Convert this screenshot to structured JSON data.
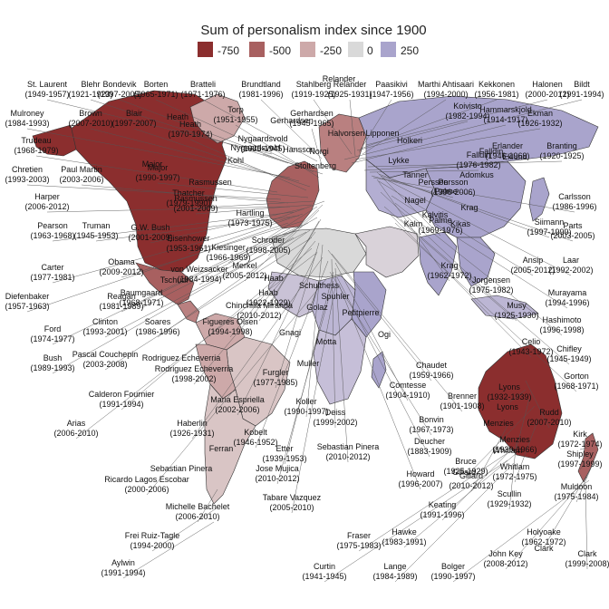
{
  "title": "Sum of personalism index since 1900",
  "legend": [
    {
      "label": "-750",
      "color": "#8b2e2e"
    },
    {
      "label": "-500",
      "color": "#a86060"
    },
    {
      "label": "-250",
      "color": "#cda9a9"
    },
    {
      "label": "0",
      "color": "#d9d9d9"
    },
    {
      "label": "250",
      "color": "#a9a4cc"
    }
  ],
  "regions": [
    {
      "name": "north-america",
      "color": "#8b2e2e"
    },
    {
      "name": "alaska",
      "color": "#8b2e2e"
    },
    {
      "name": "greenland",
      "color": "#cda9a9"
    },
    {
      "name": "mexico",
      "color": "#a86060"
    },
    {
      "name": "central-america",
      "color": "#b98080"
    },
    {
      "name": "colombia-venezuela",
      "color": "#cda9a9"
    },
    {
      "name": "brazil",
      "color": "#d9c5c5"
    },
    {
      "name": "peru-bolivia",
      "color": "#cda9a9"
    },
    {
      "name": "argentina-chile",
      "color": "#d9c5c5"
    },
    {
      "name": "western-europe",
      "color": "#a86060"
    },
    {
      "name": "scandinavia",
      "color": "#b98080"
    },
    {
      "name": "north-africa",
      "color": "#d9d9d9"
    },
    {
      "name": "west-africa",
      "color": "#c9c2d6"
    },
    {
      "name": "central-africa",
      "color": "#bcb6d4"
    },
    {
      "name": "east-africa",
      "color": "#a9a4cc"
    },
    {
      "name": "southern-africa",
      "color": "#c6bfd8"
    },
    {
      "name": "madagascar",
      "color": "#a9a4cc"
    },
    {
      "name": "middle-east",
      "color": "#d9d2d9"
    },
    {
      "name": "russia",
      "color": "#a9a4cc"
    },
    {
      "name": "central-asia",
      "color": "#b3aed2"
    },
    {
      "name": "india",
      "color": "#a9a4cc"
    },
    {
      "name": "china",
      "color": "#a9a4cc"
    },
    {
      "name": "southeast-asia",
      "color": "#a9a4cc"
    },
    {
      "name": "japan",
      "color": "#a9a4cc"
    },
    {
      "name": "indonesia",
      "color": "#bcb6d4"
    },
    {
      "name": "australia",
      "color": "#8b2e2e"
    },
    {
      "name": "new-zealand",
      "color": "#a86060"
    }
  ],
  "leaders": [
    {
      "name": "St. Laurent",
      "years": "(1949-1957)"
    },
    {
      "name": "Blehr",
      "years": "(1921-1923)"
    },
    {
      "name": "Bondevik",
      "years": "(1997-2005)"
    },
    {
      "name": "Borten",
      "years": "(1965-1971)"
    },
    {
      "name": "Bratteli",
      "years": "(1971-1976)"
    },
    {
      "name": "Brundtland",
      "years": "(1981-1996)"
    },
    {
      "name": "Stahlberg",
      "years": "(1919-1925)"
    },
    {
      "name": "Relander",
      "years": "(1925-1931)"
    },
    {
      "name": "Paasikivi",
      "years": "(1947-1956)"
    },
    {
      "name": "Marthi Ahtisaari",
      "years": "(1994-2000)"
    },
    {
      "name": "Kekkonen",
      "years": "(1956-1981)"
    },
    {
      "name": "Halonen",
      "years": "(2000-2012)"
    },
    {
      "name": "Bildt",
      "years": "(1991-1994)"
    },
    {
      "name": "Mulroney",
      "years": "(1984-1993)"
    },
    {
      "name": "Brown",
      "years": "(2007-2010)"
    },
    {
      "name": "Blair",
      "years": "(1997-2007)"
    },
    {
      "name": "Torp",
      "years": "(1951-1955)"
    },
    {
      "name": "Gerhardsen",
      "years": "(1945-1965)"
    },
    {
      "name": "Nygaardsvold",
      "years": "(1935-1945)"
    },
    {
      "name": "Heath",
      "years": "(1970-1974)"
    },
    {
      "name": "Koivisto",
      "years": "(1982-1994)"
    },
    {
      "name": "Hammarskjold",
      "years": "(1914-1917)"
    },
    {
      "name": "Ekman",
      "years": "(1926-1932)"
    },
    {
      "name": "Trudeau",
      "years": "(1968-1979)"
    },
    {
      "name": "Chretien",
      "years": "(1993-2003)"
    },
    {
      "name": "Paul Martin",
      "years": "(2003-2006)"
    },
    {
      "name": "Harper",
      "years": "(2006-2012)"
    },
    {
      "name": "Pearson",
      "years": "(1963-1968)"
    },
    {
      "name": "Truman",
      "years": "(1945-1953)"
    },
    {
      "name": "G.W. Bush",
      "years": "(2001-2009)"
    },
    {
      "name": "Rasmussen",
      "years": "(2001-2009)"
    },
    {
      "name": "Major",
      "years": "(1990-1997)"
    },
    {
      "name": "Thatcher",
      "years": "(1979-1990)"
    },
    {
      "name": "Eisenhower",
      "years": "(1953-1961)"
    },
    {
      "name": "Erlander",
      "years": "(1946-1969)"
    },
    {
      "name": "Branting",
      "years": "(1920-1925)"
    },
    {
      "name": "Falldin",
      "years": "(1976-1982)"
    },
    {
      "name": "Persson",
      "years": "(1996-2006)"
    },
    {
      "name": "Carlsson",
      "years": "(1986-1996)"
    },
    {
      "name": "Carter",
      "years": "(1977-1981)"
    },
    {
      "name": "Obama",
      "years": "(2009-2012)"
    },
    {
      "name": "Merkel",
      "years": "(2005-2012)"
    },
    {
      "name": "Kiesinger",
      "years": "(1966-1969)"
    },
    {
      "name": "Schroder",
      "years": "(1998-2005)"
    },
    {
      "name": "Hartling",
      "years": "(1973-1975)"
    },
    {
      "name": "Krag",
      "years": "(1962-1972)"
    },
    {
      "name": "Palme",
      "years": "(1969-1976)"
    },
    {
      "name": "Siimann",
      "years": "(1997-1999)"
    },
    {
      "name": "Parts",
      "years": "(2003-2005)"
    },
    {
      "name": "Laar",
      "years": "(1992-2002)"
    },
    {
      "name": "Ansip",
      "years": "(2005-2012)"
    },
    {
      "name": "Diefenbaker",
      "years": "(1957-1963)"
    },
    {
      "name": "Reagan",
      "years": "(1981-1989)"
    },
    {
      "name": "Baumgaard",
      "years": "(1968-1971)"
    },
    {
      "name": "von Weizsacker",
      "years": "(1984-1994)"
    },
    {
      "name": "Haab",
      "years": "(1922-1929)"
    },
    {
      "name": "Chinchilla Miranda",
      "years": "(2010-2012)"
    },
    {
      "name": "Jorgensen",
      "years": "(1975-1982)"
    },
    {
      "name": "Murayama",
      "years": "(1994-1996)"
    },
    {
      "name": "Hashimoto",
      "years": "(1996-1998)"
    },
    {
      "name": "Musy",
      "years": "(1925-1930)"
    },
    {
      "name": "Celio",
      "years": "(1943-1972)"
    },
    {
      "name": "Chifley",
      "years": "(1945-1949)"
    },
    {
      "name": "Gorton",
      "years": "(1968-1971)"
    },
    {
      "name": "Ford",
      "years": "(1974-1977)"
    },
    {
      "name": "Clinton",
      "years": "(1993-2001)"
    },
    {
      "name": "Soares",
      "years": "(1986-1996)"
    },
    {
      "name": "Figueres Olsen",
      "years": "(1994-1998)"
    },
    {
      "name": "Bush",
      "years": "(1989-1993)"
    },
    {
      "name": "Pascal Couchepin",
      "years": "(2003-2008)"
    },
    {
      "name": "Rodriguez Echeverria",
      "years": "(1998-2002)"
    },
    {
      "name": "Furgler",
      "years": "(1977-1985)"
    },
    {
      "name": "Koller",
      "years": "(1990-1997)"
    },
    {
      "name": "Chaudet",
      "years": "(1959-1966)"
    },
    {
      "name": "Brenner",
      "years": "(1901-1908)"
    },
    {
      "name": "Rudd",
      "years": "(2007-2010)"
    },
    {
      "name": "Kirk",
      "years": "(1972-1974)"
    },
    {
      "name": "Calderon Fournier",
      "years": "(1991-1994)"
    },
    {
      "name": "Maria Espriella",
      "years": "(2002-2006)"
    },
    {
      "name": "Deiss",
      "years": "(1999-2002)"
    },
    {
      "name": "Comtesse",
      "years": "(1904-1910)"
    },
    {
      "name": "Lyons",
      "years": "(1932-1939)"
    },
    {
      "name": "Shipley",
      "years": "(1997-1999)"
    },
    {
      "name": "Arias",
      "years": "(2006-2010)"
    },
    {
      "name": "Haberlin",
      "years": "(1926-1931)"
    },
    {
      "name": "Kobelt",
      "years": "(1946-1952)"
    },
    {
      "name": "Bonvin",
      "years": "(1967-1973)"
    },
    {
      "name": "Menzies",
      "years": "(1939-1966)"
    },
    {
      "name": "Sebastian Pinera",
      "years": "(2010-2012)"
    },
    {
      "name": "Etter",
      "years": "(1939-1953)"
    },
    {
      "name": "Deucher",
      "years": "(1883-1909)"
    },
    {
      "name": "Bruce",
      "years": "(1925-1929)"
    },
    {
      "name": "Whitlam",
      "years": "(1972-1975)"
    },
    {
      "name": "Muldoon",
      "years": "(1975-1984)"
    },
    {
      "name": "Ricardo Lagos Escobar",
      "years": "(2000-2006)"
    },
    {
      "name": "Jose Mujica",
      "years": "(2010-2012)"
    },
    {
      "name": "Howard",
      "years": "(1996-2007)"
    },
    {
      "name": "Gillard",
      "years": "(2010-2012)"
    },
    {
      "name": "Scullin",
      "years": "(1929-1932)"
    },
    {
      "name": "Michelle Bachelet",
      "years": "(2006-2010)"
    },
    {
      "name": "Tabare Vazquez",
      "years": "(2005-2010)"
    },
    {
      "name": "Keating",
      "years": "(1991-1996)"
    },
    {
      "name": "Holyoake",
      "years": "(1962-1972)"
    },
    {
      "name": "Frei Ruiz-Tagle",
      "years": "(1994-2000)"
    },
    {
      "name": "Fraser",
      "years": "(1975-1983)"
    },
    {
      "name": "Hawke",
      "years": "(1983-1991)"
    },
    {
      "name": "John Key",
      "years": "(2008-2012)"
    },
    {
      "name": "Clark",
      "years": "(1999-2008)"
    },
    {
      "name": "Aylwin",
      "years": "(1991-1994)"
    },
    {
      "name": "Curtin",
      "years": "(1941-1945)"
    },
    {
      "name": "Lange",
      "years": "(1984-1989)"
    },
    {
      "name": "Bolger",
      "years": "(1990-1997)"
    }
  ],
  "map_labels": [
    "Nygaardsvold",
    "Gerhardsen",
    "Kohl",
    "Heath",
    "Major",
    "Hansson",
    "Stoltenberg",
    "Tanner",
    "Lipponen",
    "Holkeri",
    "Rasmussen",
    "Adomkus",
    "Eklund",
    "Schulthess",
    "Petitpierre",
    "Motta",
    "Gnagi",
    "Muller",
    "Golaz",
    "Spuhler",
    "Ogi",
    "Tschudi",
    "Menzies",
    "Whitlam",
    "Gillard",
    "Ferran",
    "Falldin",
    "Halvorsen",
    "Relander",
    "Norgi",
    "Lykke",
    "Nagel",
    "Kalm",
    "Kalvitis",
    "Lyons",
    "Krag",
    "Palme",
    "Persson",
    "Kikas",
    "Clark",
    "Sebastian Pinera",
    "Rodriguez Echeverria",
    "Haab"
  ]
}
